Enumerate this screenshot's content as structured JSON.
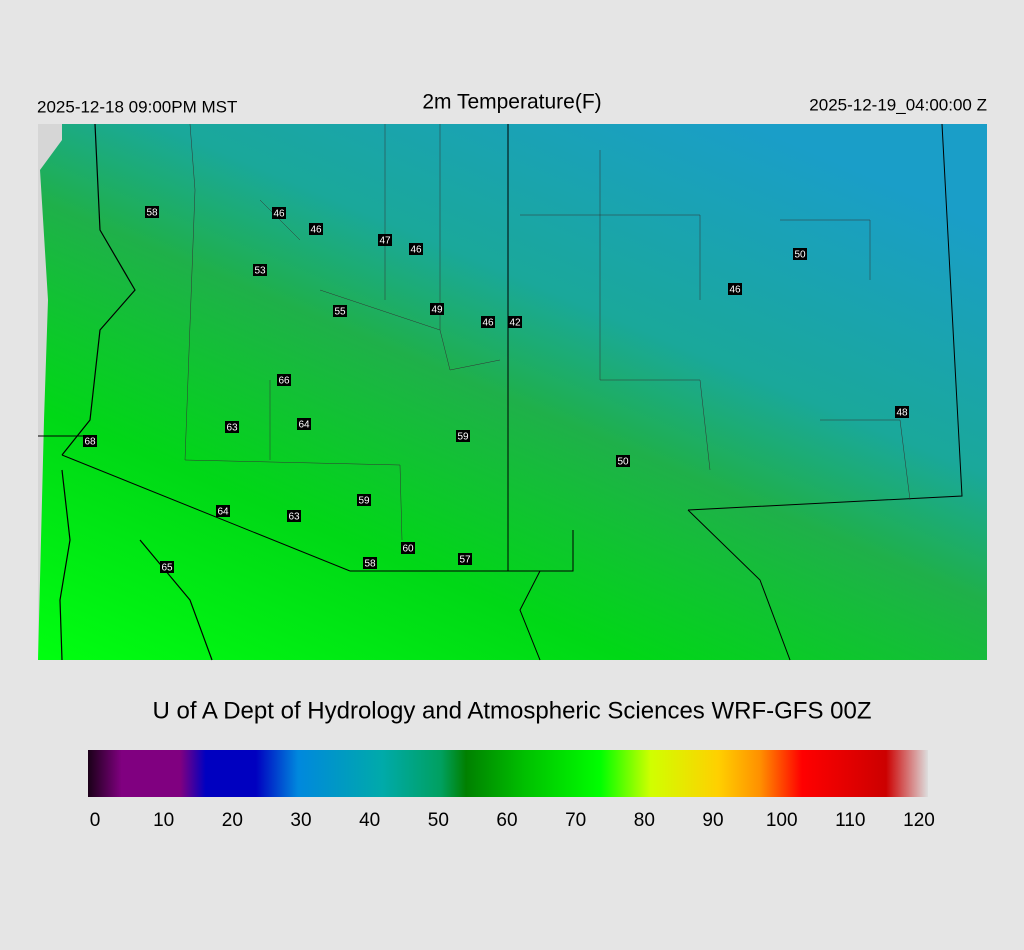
{
  "header": {
    "left": "2025-12-18 09:00PM MST",
    "title": "2m Temperature(F)",
    "right": "2025-12-19_04:00:00 Z"
  },
  "map": {
    "stations": [
      "58",
      "46",
      "46",
      "47",
      "46",
      "53",
      "55",
      "49",
      "46",
      "42",
      "66",
      "63",
      "64",
      "59",
      "68",
      "64",
      "63",
      "59",
      "60",
      "58",
      "57",
      "65",
      "50",
      "46",
      "48",
      "50"
    ]
  },
  "footer": {
    "text": "U of A Dept of Hydrology and Atmospheric Sciences WRF-GFS 00Z"
  },
  "colorbar": {
    "ticks": [
      0,
      10,
      20,
      30,
      40,
      50,
      60,
      70,
      80,
      90,
      100,
      110,
      120
    ]
  }
}
